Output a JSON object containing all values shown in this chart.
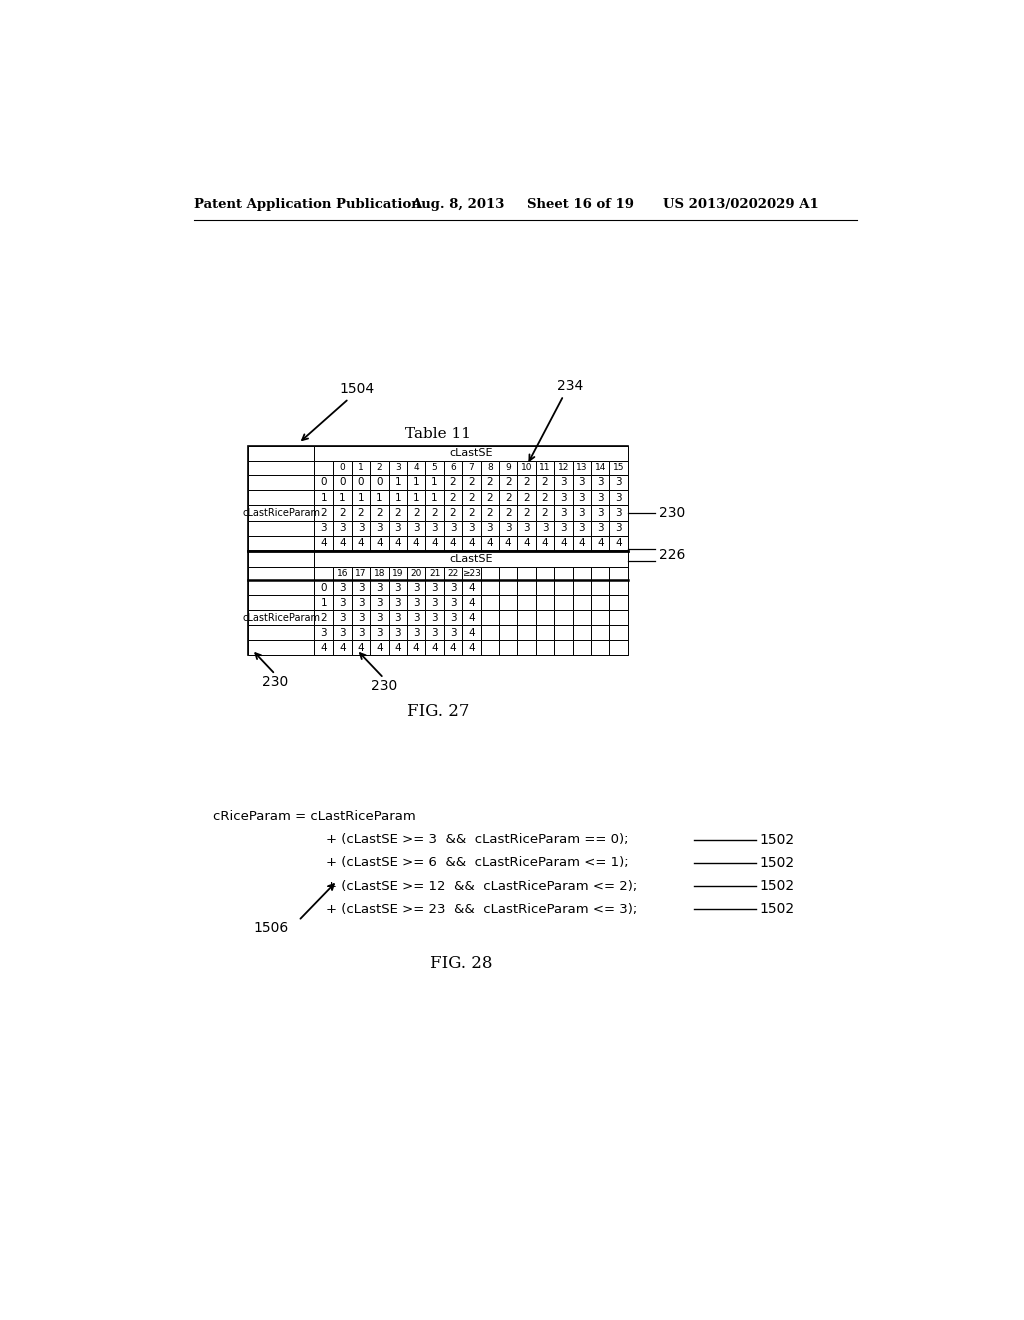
{
  "header_text": "Patent Application Publication",
  "header_date": "Aug. 8, 2013",
  "header_sheet": "Sheet 16 of 19",
  "header_patent": "US 2013/0202029 A1",
  "table_title": "Table 11",
  "fig27_label": "FIG. 27",
  "fig28_label": "FIG. 28",
  "label_1504": "1504",
  "label_234": "234",
  "label_230a": "230",
  "label_230b": "230",
  "label_230c": "230",
  "label_226": "226",
  "label_1502_list": [
    "1502",
    "1502",
    "1502",
    "1502"
  ],
  "label_1506": "1506",
  "col_header_top": "cLastSE",
  "col_header_bottom": "cLastSE",
  "row_label_top": "cLastRiceParam",
  "row_label_bottom": "cLastRiceParam",
  "top_col_nums": [
    "0",
    "1",
    "2",
    "3",
    "4",
    "5",
    "6",
    "7",
    "8",
    "9",
    "10",
    "11",
    "12",
    "13",
    "14",
    "15"
  ],
  "bottom_col_nums": [
    "16",
    "17",
    "18",
    "19",
    "20",
    "21",
    "22",
    "≥23",
    "",
    "",
    "",
    "",
    "",
    "",
    "",
    ""
  ],
  "row_nums": [
    "0",
    "1",
    "2",
    "3",
    "4"
  ],
  "top_data": [
    [
      0,
      0,
      0,
      1,
      1,
      1,
      2,
      2,
      2,
      2,
      2,
      2,
      3,
      3,
      3,
      3
    ],
    [
      1,
      1,
      1,
      1,
      1,
      1,
      2,
      2,
      2,
      2,
      2,
      2,
      3,
      3,
      3,
      3
    ],
    [
      2,
      2,
      2,
      2,
      2,
      2,
      2,
      2,
      2,
      2,
      2,
      2,
      3,
      3,
      3,
      3
    ],
    [
      3,
      3,
      3,
      3,
      3,
      3,
      3,
      3,
      3,
      3,
      3,
      3,
      3,
      3,
      3,
      3
    ],
    [
      4,
      4,
      4,
      4,
      4,
      4,
      4,
      4,
      4,
      4,
      4,
      4,
      4,
      4,
      4,
      4
    ]
  ],
  "bottom_data": [
    [
      3,
      3,
      3,
      3,
      3,
      3,
      3,
      4,
      "",
      "",
      "",
      "",
      "",
      "",
      "",
      ""
    ],
    [
      3,
      3,
      3,
      3,
      3,
      3,
      3,
      4,
      "",
      "",
      "",
      "",
      "",
      "",
      "",
      ""
    ],
    [
      3,
      3,
      3,
      3,
      3,
      3,
      3,
      4,
      "",
      "",
      "",
      "",
      "",
      "",
      "",
      ""
    ],
    [
      3,
      3,
      3,
      3,
      3,
      3,
      3,
      4,
      "",
      "",
      "",
      "",
      "",
      "",
      "",
      ""
    ],
    [
      4,
      4,
      4,
      4,
      4,
      4,
      4,
      4,
      "",
      "",
      "",
      "",
      "",
      "",
      "",
      ""
    ]
  ],
  "formula_line1": "cRiceParam = cLastRiceParam",
  "formula_line2": "+ (cLastSE >= 3  &&  cLastRiceParam == 0);",
  "formula_line3": "+ (cLastSE >= 6  &&  cLastRiceParam <= 1);",
  "formula_line4": "+ (cLastSE >= 12  &&  cLastRiceParam <= 2);",
  "formula_line5": "+ (cLastSE >= 23  &&  cLastRiceParam <= 3);"
}
